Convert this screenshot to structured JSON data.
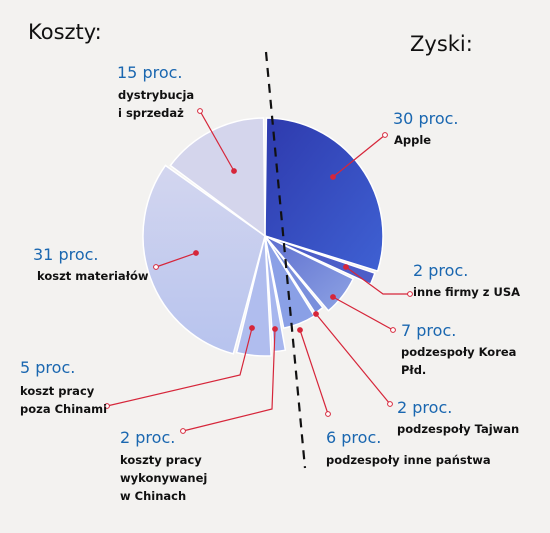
{
  "chart_data": {
    "type": "pie",
    "groups": [
      {
        "name": "Koszty:",
        "slices": [
          {
            "value": 15,
            "pct_label": "15 proc.",
            "label": [
              "dystrybucja",
              "i sprzedaż"
            ]
          },
          {
            "value": 31,
            "pct_label": "31 proc.",
            "label": [
              "koszt materiałów"
            ]
          },
          {
            "value": 5,
            "pct_label": "5 proc.",
            "label": [
              "koszt pracy",
              "poza Chinami"
            ]
          },
          {
            "value": 2,
            "pct_label": "2 proc.",
            "label": [
              "koszty pracy",
              "wykonywanej",
              "w Chinach"
            ]
          }
        ]
      },
      {
        "name": "Zyski:",
        "slices": [
          {
            "value": 30,
            "pct_label": "30 proc.",
            "label": [
              "Apple"
            ]
          },
          {
            "value": 2,
            "pct_label": "2 proc.",
            "label": [
              "inne firmy z USA"
            ]
          },
          {
            "value": 7,
            "pct_label": "7 proc.",
            "label": [
              "podzespoły Korea",
              "Płd."
            ]
          },
          {
            "value": 2,
            "pct_label": "2 proc.",
            "label": [
              "podzespoły Tajwan"
            ]
          },
          {
            "value": 6,
            "pct_label": "6 proc.",
            "label": [
              "podzespoły inne państwa"
            ]
          }
        ]
      }
    ],
    "colors": {
      "apple": "#3446c0",
      "profits": "#7488d8",
      "costs": "#c3c9ec",
      "leader": "#d6263a",
      "divider": "#111111"
    }
  }
}
